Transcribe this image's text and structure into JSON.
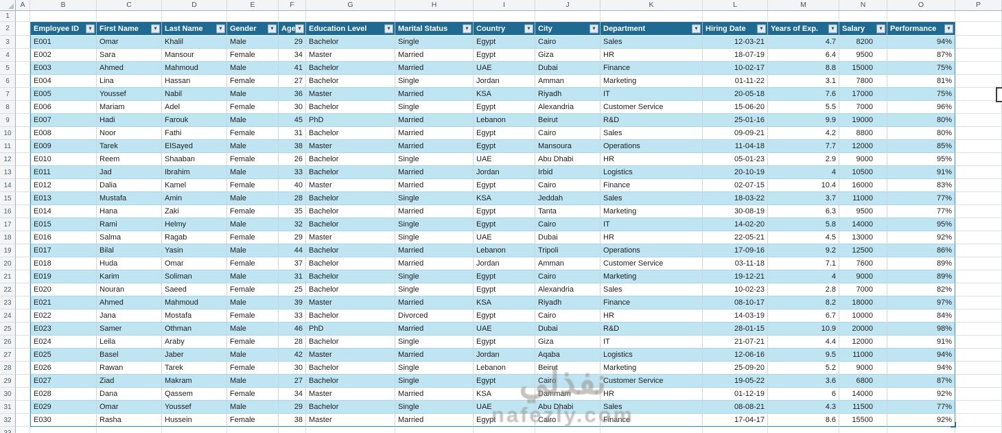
{
  "spreadsheet": {
    "column_letters": [
      "A",
      "B",
      "C",
      "D",
      "E",
      "F",
      "G",
      "H",
      "I",
      "J",
      "K",
      "L",
      "M",
      "N",
      "O",
      "P"
    ],
    "row_numbers": [
      "1",
      "2",
      "3",
      "4",
      "5",
      "6",
      "7",
      "8",
      "9",
      "10",
      "11",
      "12",
      "13",
      "14",
      "15",
      "16",
      "17",
      "18",
      "19",
      "20",
      "21",
      "22",
      "23",
      "24",
      "25",
      "26",
      "27",
      "28",
      "29",
      "30",
      "31",
      "32",
      "33"
    ]
  },
  "icons": {
    "filter_arrow": "▼"
  },
  "colors": {
    "table_header_bg": "#1E6A92",
    "banded_row_bg": "#BFE4F2",
    "table_border": "#2E8BB5",
    "header_text": "#FFFFFF"
  },
  "table": {
    "headers": [
      "Employee ID",
      "First Name",
      "Last Name",
      "Gender",
      "Age",
      "Education Level",
      "Marital Status",
      "Country",
      "City",
      "Department",
      "Hiring Date",
      "Years of Exp.",
      "Salary",
      "Performance"
    ],
    "rows": [
      [
        "E001",
        "Omar",
        "Khalil",
        "Male",
        "29",
        "Bachelor",
        "Single",
        "Egypt",
        "Cairo",
        "Sales",
        "12-03-21",
        "4.7",
        "8200",
        "94%"
      ],
      [
        "E002",
        "Sara",
        "Mansour",
        "Female",
        "34",
        "Master",
        "Married",
        "Egypt",
        "Giza",
        "HR",
        "18-07-19",
        "6.4",
        "9500",
        "87%"
      ],
      [
        "E003",
        "Ahmed",
        "Mahmoud",
        "Male",
        "41",
        "Bachelor",
        "Married",
        "UAE",
        "Dubai",
        "Finance",
        "10-02-17",
        "8.8",
        "15000",
        "75%"
      ],
      [
        "E004",
        "Lina",
        "Hassan",
        "Female",
        "27",
        "Bachelor",
        "Single",
        "Jordan",
        "Amman",
        "Marketing",
        "01-11-22",
        "3.1",
        "7800",
        "81%"
      ],
      [
        "E005",
        "Youssef",
        "Nabil",
        "Male",
        "36",
        "Master",
        "Married",
        "KSA",
        "Riyadh",
        "IT",
        "20-05-18",
        "7.6",
        "17000",
        "75%"
      ],
      [
        "E006",
        "Mariam",
        "Adel",
        "Female",
        "30",
        "Bachelor",
        "Single",
        "Egypt",
        "Alexandria",
        "Customer Service",
        "15-06-20",
        "5.5",
        "7000",
        "96%"
      ],
      [
        "E007",
        "Hadi",
        "Farouk",
        "Male",
        "45",
        "PhD",
        "Married",
        "Lebanon",
        "Beirut",
        "R&D",
        "25-01-16",
        "9.9",
        "19000",
        "80%"
      ],
      [
        "E008",
        "Noor",
        "Fathi",
        "Female",
        "31",
        "Bachelor",
        "Married",
        "Egypt",
        "Cairo",
        "Sales",
        "09-09-21",
        "4.2",
        "8800",
        "80%"
      ],
      [
        "E009",
        "Tarek",
        "ElSayed",
        "Male",
        "38",
        "Master",
        "Married",
        "Egypt",
        "Mansoura",
        "Operations",
        "11-04-18",
        "7.7",
        "12000",
        "85%"
      ],
      [
        "E010",
        "Reem",
        "Shaaban",
        "Female",
        "26",
        "Bachelor",
        "Single",
        "UAE",
        "Abu Dhabi",
        "HR",
        "05-01-23",
        "2.9",
        "9000",
        "95%"
      ],
      [
        "E011",
        "Jad",
        "Ibrahim",
        "Male",
        "33",
        "Bachelor",
        "Married",
        "Jordan",
        "Irbid",
        "Logistics",
        "20-10-19",
        "4",
        "10500",
        "91%"
      ],
      [
        "E012",
        "Dalia",
        "Kamel",
        "Female",
        "40",
        "Master",
        "Married",
        "Egypt",
        "Cairo",
        "Finance",
        "02-07-15",
        "10.4",
        "16000",
        "83%"
      ],
      [
        "E013",
        "Mustafa",
        "Amin",
        "Male",
        "28",
        "Bachelor",
        "Single",
        "KSA",
        "Jeddah",
        "Sales",
        "18-03-22",
        "3.7",
        "11000",
        "77%"
      ],
      [
        "E014",
        "Hana",
        "Zaki",
        "Female",
        "35",
        "Bachelor",
        "Married",
        "Egypt",
        "Tanta",
        "Marketing",
        "30-08-19",
        "6.3",
        "9500",
        "77%"
      ],
      [
        "E015",
        "Rami",
        "Helmy",
        "Male",
        "32",
        "Bachelor",
        "Single",
        "Egypt",
        "Cairo",
        "IT",
        "14-02-20",
        "5.8",
        "14000",
        "95%"
      ],
      [
        "E016",
        "Salma",
        "Ragab",
        "Female",
        "29",
        "Master",
        "Single",
        "UAE",
        "Dubai",
        "HR",
        "22-05-21",
        "4.5",
        "13000",
        "92%"
      ],
      [
        "E017",
        "Bilal",
        "Yasin",
        "Male",
        "44",
        "Bachelor",
        "Married",
        "Lebanon",
        "Tripoli",
        "Operations",
        "17-09-16",
        "9.2",
        "12500",
        "86%"
      ],
      [
        "E018",
        "Huda",
        "Omar",
        "Female",
        "37",
        "Bachelor",
        "Married",
        "Jordan",
        "Amman",
        "Customer Service",
        "03-11-18",
        "7.1",
        "7600",
        "89%"
      ],
      [
        "E019",
        "Karim",
        "Soliman",
        "Male",
        "31",
        "Bachelor",
        "Single",
        "Egypt",
        "Cairo",
        "Marketing",
        "19-12-21",
        "4",
        "9000",
        "89%"
      ],
      [
        "E020",
        "Nouran",
        "Saeed",
        "Female",
        "25",
        "Bachelor",
        "Single",
        "Egypt",
        "Alexandria",
        "Sales",
        "10-02-23",
        "2.8",
        "7000",
        "82%"
      ],
      [
        "E021",
        "Ahmed",
        "Mahmoud",
        "Male",
        "39",
        "Master",
        "Married",
        "KSA",
        "Riyadh",
        "Finance",
        "08-10-17",
        "8.2",
        "18000",
        "97%"
      ],
      [
        "E022",
        "Jana",
        "Mostafa",
        "Female",
        "33",
        "Bachelor",
        "Divorced",
        "Egypt",
        "Cairo",
        "HR",
        "14-03-19",
        "6.7",
        "10000",
        "84%"
      ],
      [
        "E023",
        "Samer",
        "Othman",
        "Male",
        "46",
        "PhD",
        "Married",
        "UAE",
        "Dubai",
        "R&D",
        "28-01-15",
        "10.9",
        "20000",
        "98%"
      ],
      [
        "E024",
        "Leila",
        "Araby",
        "Female",
        "28",
        "Bachelor",
        "Single",
        "Egypt",
        "Giza",
        "IT",
        "21-07-21",
        "4.4",
        "12000",
        "91%"
      ],
      [
        "E025",
        "Basel",
        "Jaber",
        "Male",
        "42",
        "Master",
        "Married",
        "Jordan",
        "Aqaba",
        "Logistics",
        "12-06-16",
        "9.5",
        "11000",
        "94%"
      ],
      [
        "E026",
        "Rawan",
        "Tarek",
        "Female",
        "30",
        "Bachelor",
        "Single",
        "Lebanon",
        "Beirut",
        "Marketing",
        "25-09-20",
        "5.2",
        "9000",
        "94%"
      ],
      [
        "E027",
        "Ziad",
        "Makram",
        "Male",
        "27",
        "Bachelor",
        "Single",
        "Egypt",
        "Cairo",
        "Customer Service",
        "19-05-22",
        "3.6",
        "6800",
        "87%"
      ],
      [
        "E028",
        "Dana",
        "Qassem",
        "Female",
        "34",
        "Master",
        "Married",
        "KSA",
        "Dammam",
        "HR",
        "01-12-19",
        "6",
        "14000",
        "92%"
      ],
      [
        "E029",
        "Omar",
        "Youssef",
        "Male",
        "29",
        "Bachelor",
        "Single",
        "UAE",
        "Abu Dhabi",
        "Sales",
        "08-08-21",
        "4.3",
        "11500",
        "77%"
      ],
      [
        "E030",
        "Rasha",
        "Hussein",
        "Female",
        "38",
        "Master",
        "Married",
        "Egypt",
        "Cairo",
        "Finance",
        "17-04-17",
        "8.6",
        "15500",
        "92%"
      ]
    ]
  },
  "watermark": {
    "arabic": "نفذلي",
    "latin": "nafezly.com"
  }
}
